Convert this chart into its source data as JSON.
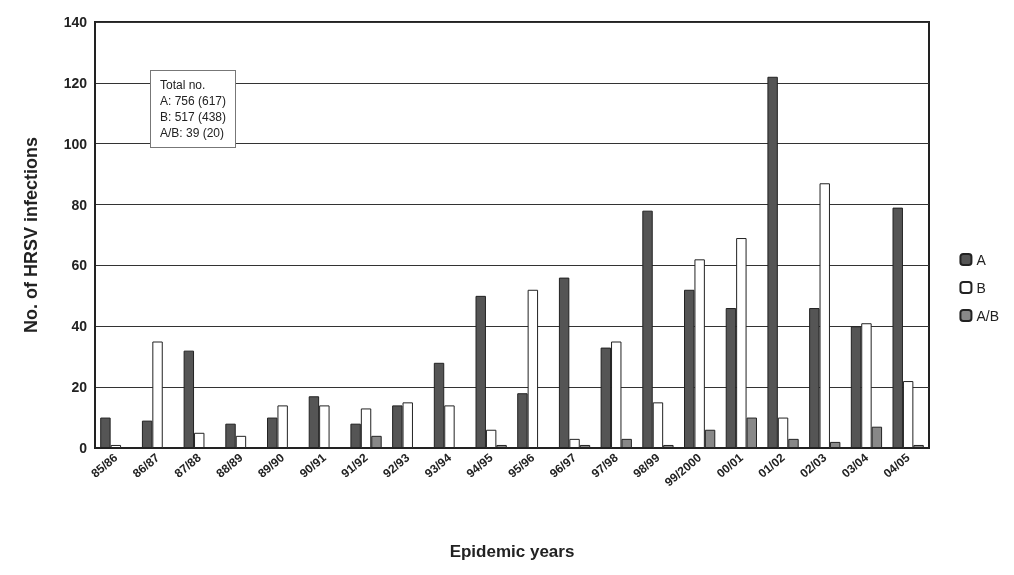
{
  "chart_data": {
    "type": "bar",
    "xlabel": "Epidemic years",
    "ylabel": "No. of HRSV infections",
    "categories": [
      "85/86",
      "86/87",
      "87/88",
      "88/89",
      "89/90",
      "90/91",
      "91/92",
      "92/93",
      "93/94",
      "94/95",
      "95/96",
      "96/97",
      "97/98",
      "98/99",
      "99/2000",
      "00/01",
      "01/02",
      "02/03",
      "03/04",
      "04/05"
    ],
    "series": [
      {
        "name": "A",
        "color": "#555555",
        "values": [
          10,
          9,
          32,
          8,
          10,
          17,
          8,
          14,
          28,
          50,
          18,
          56,
          33,
          78,
          52,
          46,
          122,
          46,
          40,
          79
        ]
      },
      {
        "name": "B",
        "color": "#ffffff",
        "values": [
          1,
          35,
          5,
          4,
          14,
          14,
          13,
          15,
          14,
          6,
          52,
          3,
          35,
          15,
          62,
          69,
          10,
          87,
          41,
          22
        ]
      },
      {
        "name": "A/B",
        "color": "#888888",
        "values": [
          0,
          0,
          0,
          0,
          0,
          0,
          4,
          0,
          0,
          1,
          0,
          1,
          3,
          1,
          6,
          10,
          3,
          2,
          7,
          1
        ]
      }
    ],
    "ylim": [
      0,
      140
    ],
    "yticks": [
      0,
      20,
      40,
      60,
      80,
      100,
      120,
      140
    ],
    "grid": "y",
    "legend": "right",
    "annotations": [
      "Total no.",
      "A: 756 (617)",
      "B: 517 (438)",
      "A/B: 39 (20)"
    ]
  }
}
